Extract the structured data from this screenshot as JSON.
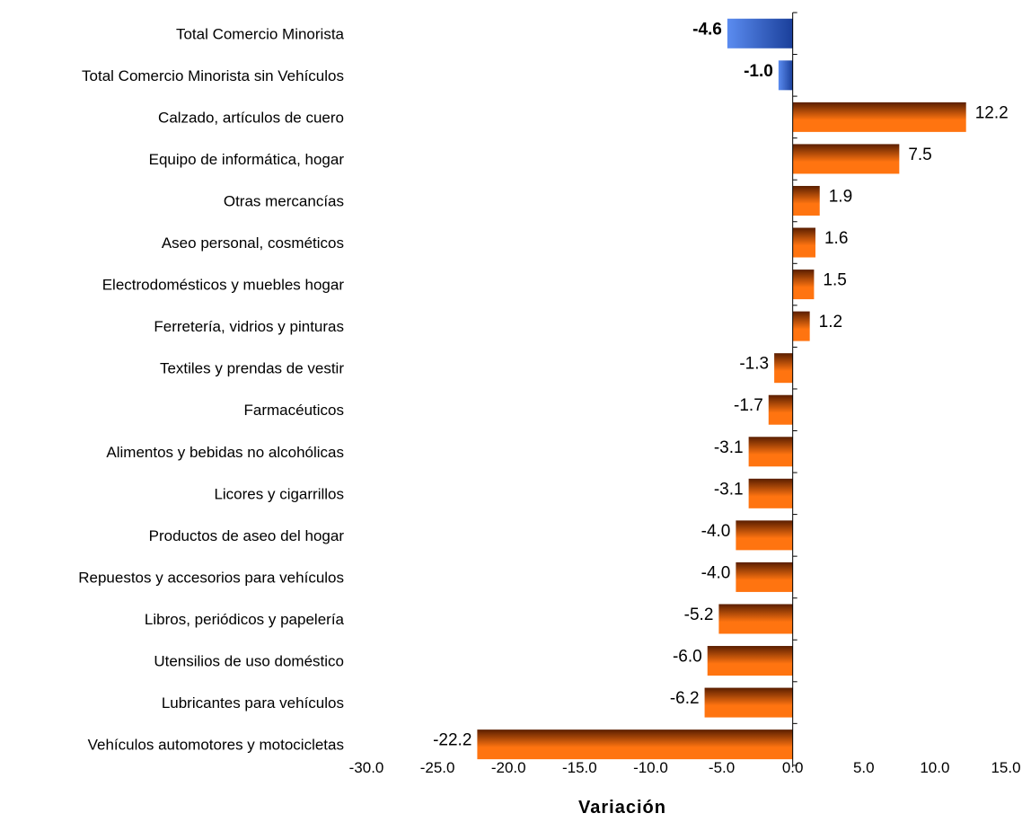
{
  "chart_data": {
    "type": "bar",
    "orientation": "horizontal",
    "xlabel": "Variación",
    "xlim": [
      -30,
      15
    ],
    "xticks": [
      -30,
      -25,
      -20,
      -15,
      -10,
      -5,
      0,
      5,
      10,
      15
    ],
    "xtick_labels": [
      "-30.0",
      "-25.0",
      "-20.0",
      "-15.0",
      "-10.0",
      "-5.0",
      "0.0",
      "5.0",
      "10.0",
      "15.0"
    ],
    "categories": [
      "Total Comercio Minorista",
      "Total Comercio Minorista sin  Vehículos",
      "Calzado, artículos de cuero",
      "Equipo de informática, hogar",
      "Otras mercancías",
      "Aseo personal, cosméticos",
      "Electrodomésticos y muebles hogar",
      "Ferretería, vidrios y pinturas",
      "Textiles y prendas de vestir",
      "Farmacéuticos",
      "Alimentos y bebidas no alcohólicas",
      "Licores y cigarrillos",
      "Productos de aseo del  hogar",
      "Repuestos y accesorios para vehículos",
      "Libros, periódicos y papelería",
      "Utensilios de uso doméstico",
      "Lubricantes para vehículos",
      "Vehículos automotores y motocicletas"
    ],
    "values": [
      -4.6,
      -1.0,
      12.2,
      7.5,
      1.9,
      1.6,
      1.5,
      1.2,
      -1.3,
      -1.7,
      -3.1,
      -3.1,
      -4.0,
      -4.0,
      -5.2,
      -6.0,
      -6.2,
      -22.2
    ],
    "value_labels": [
      "-4.6",
      "-1.0",
      "12.2",
      "7.5",
      "1.9",
      "1.6",
      "1.5",
      "1.2",
      "-1.3",
      "-1.7",
      "-3.1",
      "-3.1",
      "-4.0",
      "-4.0",
      "-5.2",
      "-6.0",
      "-6.2",
      "-22.2"
    ],
    "highlight": [
      true,
      true,
      false,
      false,
      false,
      false,
      false,
      false,
      false,
      false,
      false,
      false,
      false,
      false,
      false,
      false,
      false,
      false
    ],
    "colors": {
      "highlight_light": "#5b8cf0",
      "highlight_dark": "#1a3f9a",
      "bar_light": "#ff7410",
      "bar_dark": "#5a1e00"
    },
    "grid": false,
    "legend": "none"
  }
}
